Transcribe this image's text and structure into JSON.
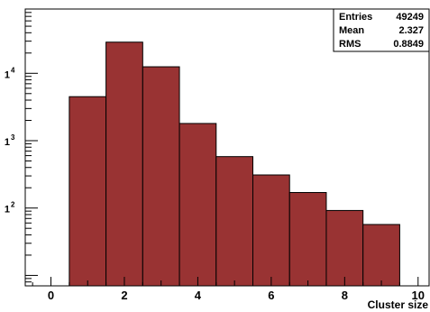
{
  "chart_data": {
    "type": "bar",
    "bin_edges": [
      0.5,
      1.5,
      2.5,
      3.5,
      4.5,
      5.5,
      6.5,
      7.5,
      8.5,
      9.5
    ],
    "values": [
      4500,
      29000,
      12500,
      1800,
      580,
      310,
      170,
      92,
      57
    ],
    "xlim": [
      -0.7,
      10.3
    ],
    "ylim": [
      7,
      90000
    ],
    "y_scale": "log",
    "xlabel": "Cluster size",
    "x_ticks": [
      0,
      2,
      4,
      6,
      8,
      10
    ],
    "y_ticks": [
      {
        "value": 100,
        "base": "1",
        "exp": "2"
      },
      {
        "value": 1000,
        "base": "1",
        "exp": "3"
      },
      {
        "value": 10000,
        "base": "1",
        "exp": "4"
      }
    ],
    "fill_color": "#993333",
    "edge_color": "#000000",
    "stats_box": {
      "rows": [
        {
          "label": "Entries",
          "value": "49249"
        },
        {
          "label": "Mean",
          "value": "2.327"
        },
        {
          "label": "RMS",
          "value": "0.8849"
        }
      ]
    }
  }
}
